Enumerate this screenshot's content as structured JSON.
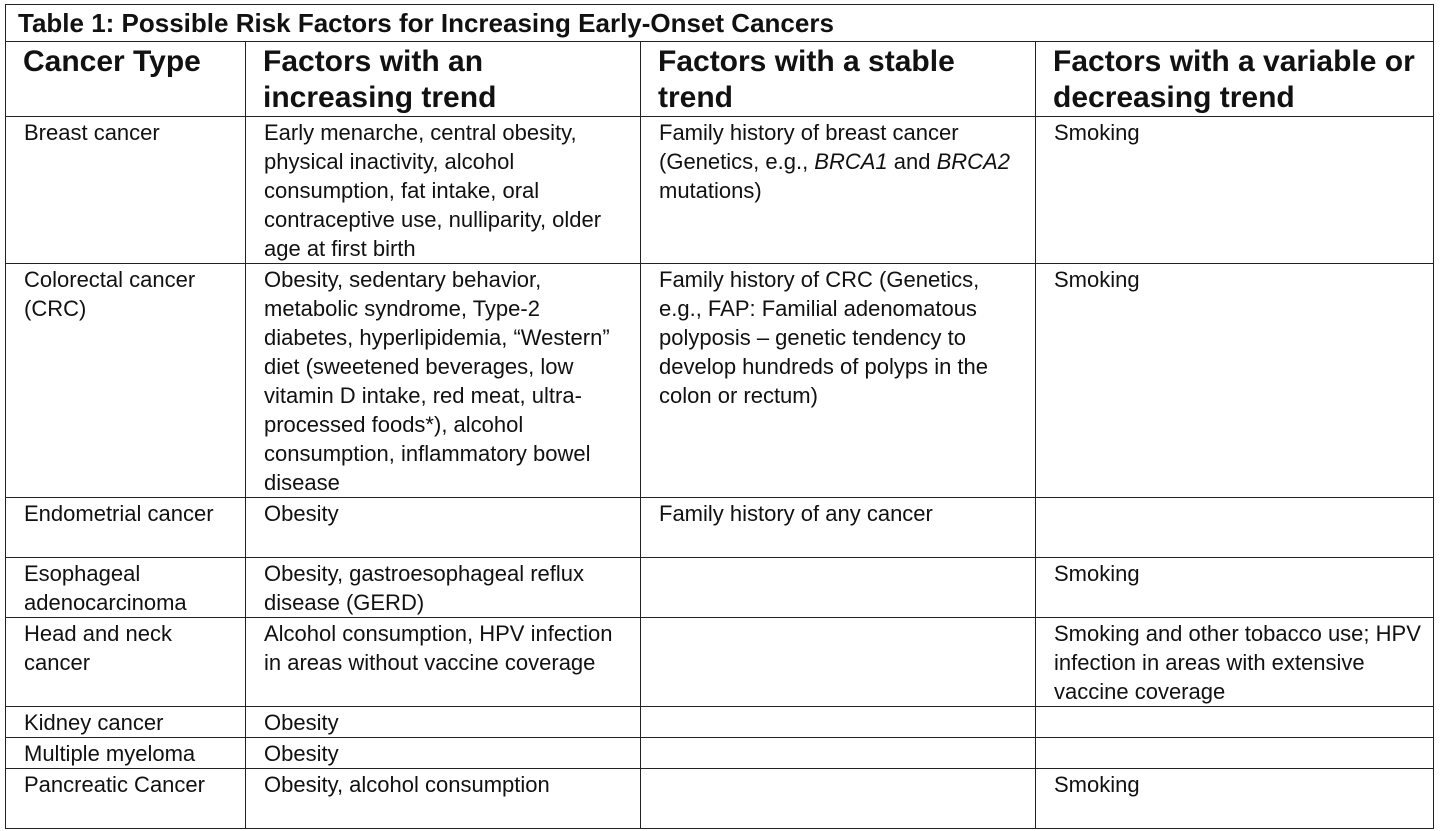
{
  "table": {
    "caption": "Table 1: Possible Risk Factors for Increasing Early-Onset Cancers",
    "headers": [
      "Cancer Type",
      "Factors with an increasing trend",
      "Factors with a stable trend",
      "Factors with a variable or decreasing trend"
    ],
    "rows": [
      {
        "type": "Breast cancer",
        "increasing": "Early menarche, central obesity, physical inactivity, alcohol consumption, fat intake, oral contraceptive use, nulliparity, older age at first birth",
        "stable_parts": {
          "a": "Family history of breast cancer (Genetics, e.g., ",
          "b": "BRCA1",
          "c": " and ",
          "d": "BRCA2",
          "e": " mutations)"
        },
        "variable": "Smoking"
      },
      {
        "type": "Colorectal cancer (CRC)",
        "increasing": "Obesity, sedentary behavior, metabolic syndrome, Type-2 diabetes, hyperlipidemia, “Western” diet (sweetened beverages, low vitamin D intake, red meat, ultra-processed foods*), alcohol consumption, inflammatory bowel disease",
        "stable": "Family history of CRC (Genetics, e.g., FAP: Familial adenomatous polyposis – genetic tendency to develop hundreds of polyps in the colon or rectum)",
        "variable": "Smoking"
      },
      {
        "type": "Endometrial cancer",
        "increasing": "Obesity",
        "stable": "Family history of any cancer",
        "variable": ""
      },
      {
        "type": "Esophageal adenocarcinoma",
        "increasing": "Obesity, gastroesophageal reflux disease (GERD)",
        "stable": "",
        "variable": "Smoking"
      },
      {
        "type": "Head and neck cancer",
        "increasing": "Alcohol consumption, HPV infection in areas without vaccine coverage",
        "stable": "",
        "variable": "Smoking and other tobacco use; HPV infection in areas with extensive vaccine coverage"
      },
      {
        "type": "Kidney cancer",
        "increasing": "Obesity",
        "stable": "",
        "variable": ""
      },
      {
        "type": "Multiple myeloma",
        "increasing": "Obesity",
        "stable": "",
        "variable": ""
      },
      {
        "type": "Pancreatic Cancer",
        "increasing": "Obesity, alcohol consumption",
        "stable": "",
        "variable": "Smoking"
      }
    ]
  }
}
